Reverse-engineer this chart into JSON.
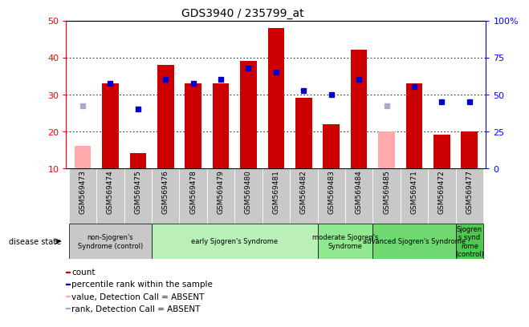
{
  "title": "GDS3940 / 235799_at",
  "samples": [
    "GSM569473",
    "GSM569474",
    "GSM569475",
    "GSM569476",
    "GSM569478",
    "GSM569479",
    "GSM569480",
    "GSM569481",
    "GSM569482",
    "GSM569483",
    "GSM569484",
    "GSM569485",
    "GSM569471",
    "GSM569472",
    "GSM569477"
  ],
  "bar_values": [
    16,
    33,
    14,
    38,
    33,
    33,
    39,
    48,
    29,
    22,
    42,
    20,
    33,
    19,
    20
  ],
  "bar_absent": [
    true,
    false,
    false,
    false,
    false,
    false,
    false,
    false,
    false,
    false,
    false,
    true,
    false,
    false,
    false
  ],
  "rank_values": [
    27,
    33,
    26,
    34,
    33,
    34,
    37,
    36,
    31,
    30,
    34,
    27,
    32,
    28,
    28
  ],
  "rank_absent": [
    true,
    false,
    false,
    false,
    false,
    false,
    false,
    false,
    false,
    false,
    false,
    true,
    false,
    false,
    false
  ],
  "left_ylim": [
    10,
    50
  ],
  "right_ylim": [
    0,
    100
  ],
  "left_yticks": [
    10,
    20,
    30,
    40,
    50
  ],
  "right_yticks": [
    0,
    25,
    50,
    75,
    100
  ],
  "groups": [
    {
      "label": "non-Sjogren's\nSyndrome (control)",
      "start": 0,
      "end": 3,
      "color": "#c8c8c8"
    },
    {
      "label": "early Sjogren's Syndrome",
      "start": 3,
      "end": 9,
      "color": "#b8f0b8"
    },
    {
      "label": "moderate Sjogren's\nSyndrome",
      "start": 9,
      "end": 11,
      "color": "#90e890"
    },
    {
      "label": "advanced Sjogren's Syndrome",
      "start": 11,
      "end": 14,
      "color": "#70d870"
    },
    {
      "label": "Sjogren\ns synd\nrome\n(control)",
      "start": 14,
      "end": 15,
      "color": "#50c850"
    }
  ],
  "bar_color_present": "#cc0000",
  "bar_color_absent": "#ffaaaa",
  "rank_color_present": "#0000cc",
  "rank_color_absent": "#aaaacc",
  "sample_bg": "#c8c8c8",
  "legend": [
    {
      "color": "#cc0000",
      "label": "count"
    },
    {
      "color": "#0000cc",
      "label": "percentile rank within the sample"
    },
    {
      "color": "#ffaaaa",
      "label": "value, Detection Call = ABSENT"
    },
    {
      "color": "#aaaacc",
      "label": "rank, Detection Call = ABSENT"
    }
  ]
}
